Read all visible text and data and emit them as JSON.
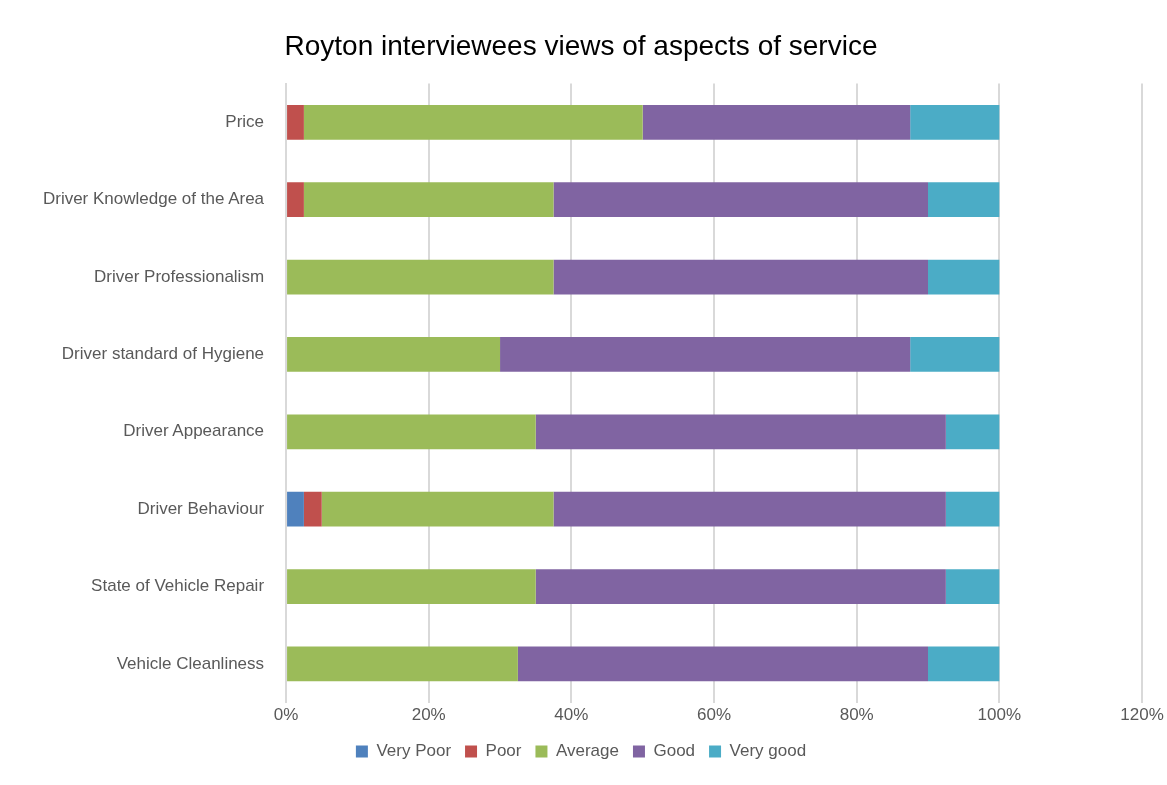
{
  "chart_data": {
    "type": "bar",
    "orientation": "horizontal",
    "stacked": true,
    "title": "Royton interviewees views of aspects of service",
    "categories": [
      "Price",
      "Driver Knowledge of the Area",
      "Driver Professionalism",
      "Driver standard of Hygiene",
      "Driver Appearance",
      "Driver Behaviour",
      "State of Vehicle Repair",
      "Vehicle Cleanliness"
    ],
    "series": [
      {
        "name": "Very Poor",
        "color": "#4f81bd",
        "values": [
          0,
          0,
          0,
          0,
          0,
          2.5,
          0,
          0
        ]
      },
      {
        "name": "Poor",
        "color": "#c0504d",
        "values": [
          2.5,
          2.5,
          0,
          0,
          0,
          2.5,
          0,
          0
        ]
      },
      {
        "name": "Average",
        "color": "#9bbb59",
        "values": [
          47.5,
          35,
          37.5,
          30,
          35,
          32.5,
          35,
          32.5
        ]
      },
      {
        "name": "Good",
        "color": "#8064a2",
        "values": [
          37.5,
          52.5,
          52.5,
          57.5,
          57.5,
          55,
          57.5,
          57.5
        ]
      },
      {
        "name": "Very good",
        "color": "#4bacc6",
        "values": [
          12.5,
          10,
          10,
          12.5,
          7.5,
          7.5,
          7.5,
          10
        ]
      }
    ],
    "xlim": [
      0,
      120
    ],
    "xticks": [
      {
        "value": 0,
        "label": "0%"
      },
      {
        "value": 20,
        "label": "20%"
      },
      {
        "value": 40,
        "label": "40%"
      },
      {
        "value": 60,
        "label": "60%"
      },
      {
        "value": 80,
        "label": "80%"
      },
      {
        "value": 100,
        "label": "100%"
      },
      {
        "value": 120,
        "label": "120%"
      }
    ],
    "grid": "x",
    "legend": "bottom"
  }
}
